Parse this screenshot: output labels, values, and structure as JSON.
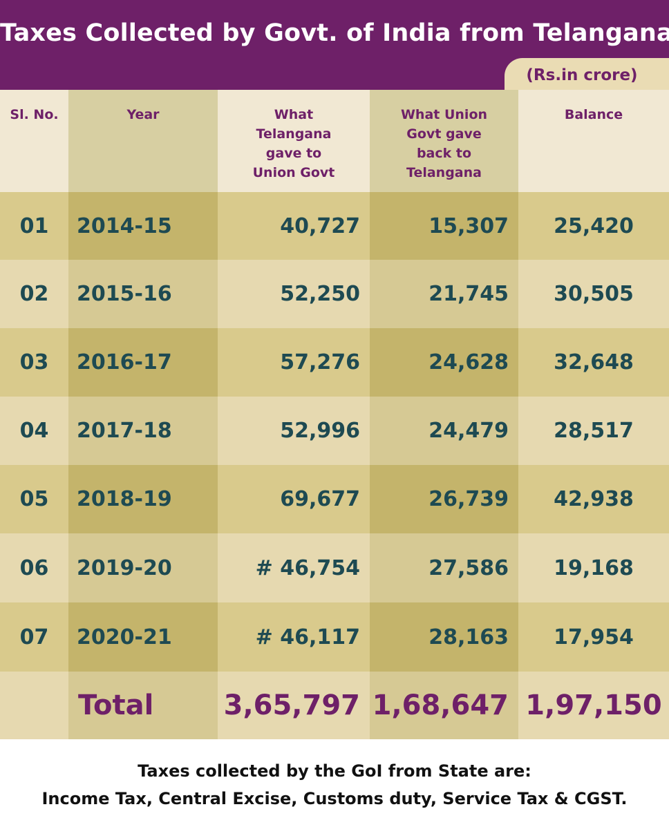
{
  "title": "Taxes Collected by Govt. of India from Telangana",
  "unit": "(Rs.in crore)",
  "headers": {
    "sl": "Sl. No.",
    "year": "Year",
    "gave": [
      "What",
      "Telangana",
      "gave to",
      "Union Govt"
    ],
    "got": [
      "What Union",
      "Govt gave",
      "back to",
      "Telangana"
    ],
    "balance": "Balance"
  },
  "rows": [
    {
      "sl": "01",
      "year": "2014-15",
      "gave": "40,727",
      "got": "15,307",
      "balance": "25,420"
    },
    {
      "sl": "02",
      "year": "2015-16",
      "gave": "52,250",
      "got": "21,745",
      "balance": "30,505"
    },
    {
      "sl": "03",
      "year": "2016-17",
      "gave": "57,276",
      "got": "24,628",
      "balance": "32,648"
    },
    {
      "sl": "04",
      "year": "2017-18",
      "gave": "52,996",
      "got": "24,479",
      "balance": "28,517"
    },
    {
      "sl": "05",
      "year": "2018-19",
      "gave": "69,677",
      "got": "26,739",
      "balance": "42,938"
    },
    {
      "sl": "06",
      "year": "2019-20",
      "gave": "# 46,754",
      "got": "27,586",
      "balance": "19,168"
    },
    {
      "sl": "07",
      "year": "2020-21",
      "gave": "# 46,117",
      "got": "28,163",
      "balance": "17,954"
    }
  ],
  "total": {
    "label": "Total",
    "gave": "3,65,797",
    "got": "1,68,647",
    "balance": "1,97,150"
  },
  "footer": {
    "line1": "Taxes collected by the GoI from State are:",
    "line2": "Income Tax, Central Excise, Customs duty, Service Tax & CGST."
  },
  "colors": {
    "banner": "#6e2068",
    "figure_text": "#1e4a52",
    "accent_text": "#6e2068"
  }
}
